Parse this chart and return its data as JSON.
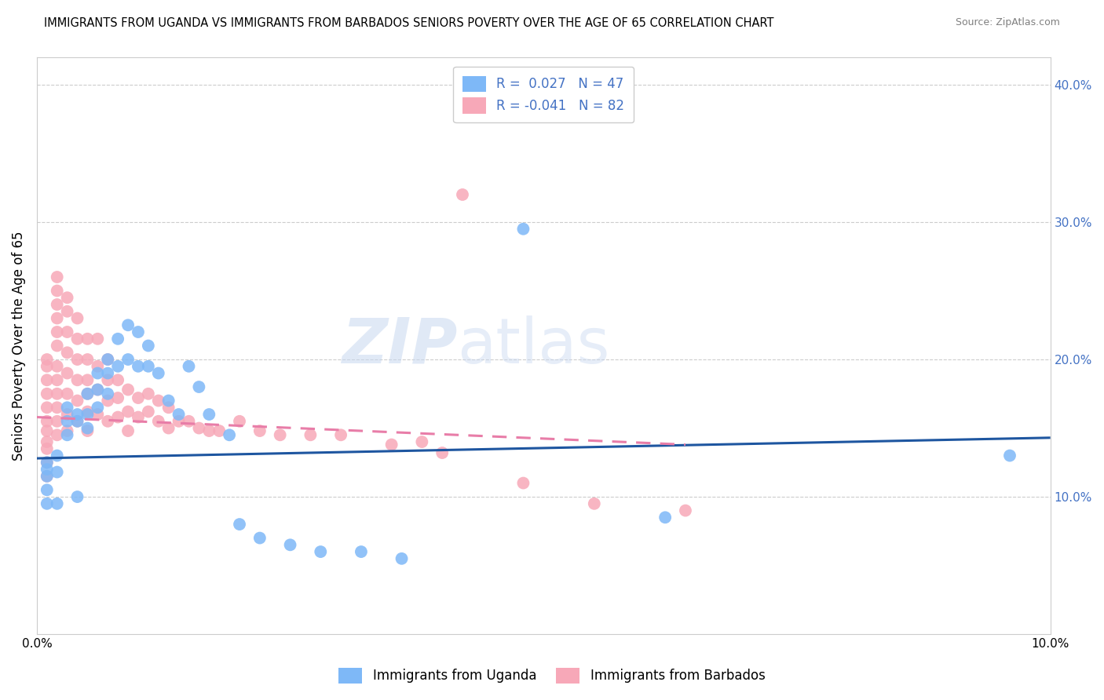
{
  "title": "IMMIGRANTS FROM UGANDA VS IMMIGRANTS FROM BARBADOS SENIORS POVERTY OVER THE AGE OF 65 CORRELATION CHART",
  "source": "Source: ZipAtlas.com",
  "ylabel": "Seniors Poverty Over the Age of 65",
  "xlim": [
    0.0,
    0.1
  ],
  "ylim": [
    0.0,
    0.42
  ],
  "legend_label1": "Immigrants from Uganda",
  "legend_label2": "Immigrants from Barbados",
  "R1": "0.027",
  "N1": "47",
  "R2": "-0.041",
  "N2": "82",
  "color_uganda": "#7EB8F7",
  "color_barbados": "#F7A8B8",
  "color_uganda_line": "#1E56A0",
  "color_barbados_line": "#E87DA8",
  "watermark_zip": "ZIP",
  "watermark_atlas": "atlas",
  "uganda_line_x0": 0.0,
  "uganda_line_y0": 0.128,
  "uganda_line_x1": 0.1,
  "uganda_line_y1": 0.143,
  "barbados_line_x0": 0.0,
  "barbados_line_y0": 0.158,
  "barbados_line_x1": 0.064,
  "barbados_line_y1": 0.138,
  "uganda_x": [
    0.001,
    0.001,
    0.001,
    0.001,
    0.001,
    0.002,
    0.002,
    0.002,
    0.003,
    0.003,
    0.003,
    0.004,
    0.004,
    0.004,
    0.005,
    0.005,
    0.005,
    0.006,
    0.006,
    0.006,
    0.007,
    0.007,
    0.007,
    0.008,
    0.008,
    0.009,
    0.009,
    0.01,
    0.01,
    0.011,
    0.011,
    0.012,
    0.013,
    0.014,
    0.015,
    0.016,
    0.017,
    0.019,
    0.02,
    0.022,
    0.025,
    0.028,
    0.032,
    0.036,
    0.048,
    0.062,
    0.096
  ],
  "uganda_y": [
    0.115,
    0.12,
    0.125,
    0.105,
    0.095,
    0.13,
    0.118,
    0.095,
    0.165,
    0.155,
    0.145,
    0.16,
    0.155,
    0.1,
    0.175,
    0.16,
    0.15,
    0.19,
    0.178,
    0.165,
    0.2,
    0.19,
    0.175,
    0.215,
    0.195,
    0.225,
    0.2,
    0.22,
    0.195,
    0.21,
    0.195,
    0.19,
    0.17,
    0.16,
    0.195,
    0.18,
    0.16,
    0.145,
    0.08,
    0.07,
    0.065,
    0.06,
    0.06,
    0.055,
    0.295,
    0.085,
    0.13
  ],
  "barbados_x": [
    0.001,
    0.001,
    0.001,
    0.001,
    0.001,
    0.001,
    0.001,
    0.001,
    0.001,
    0.001,
    0.001,
    0.002,
    0.002,
    0.002,
    0.002,
    0.002,
    0.002,
    0.002,
    0.002,
    0.002,
    0.002,
    0.002,
    0.002,
    0.003,
    0.003,
    0.003,
    0.003,
    0.003,
    0.003,
    0.003,
    0.003,
    0.004,
    0.004,
    0.004,
    0.004,
    0.004,
    0.004,
    0.005,
    0.005,
    0.005,
    0.005,
    0.005,
    0.005,
    0.006,
    0.006,
    0.006,
    0.006,
    0.007,
    0.007,
    0.007,
    0.007,
    0.008,
    0.008,
    0.008,
    0.009,
    0.009,
    0.009,
    0.01,
    0.01,
    0.011,
    0.011,
    0.012,
    0.012,
    0.013,
    0.013,
    0.014,
    0.015,
    0.016,
    0.017,
    0.018,
    0.02,
    0.022,
    0.024,
    0.027,
    0.03,
    0.035,
    0.038,
    0.04,
    0.042,
    0.048,
    0.055,
    0.064
  ],
  "barbados_y": [
    0.2,
    0.195,
    0.185,
    0.175,
    0.165,
    0.155,
    0.148,
    0.14,
    0.135,
    0.125,
    0.115,
    0.26,
    0.25,
    0.24,
    0.23,
    0.22,
    0.21,
    0.195,
    0.185,
    0.175,
    0.165,
    0.155,
    0.145,
    0.245,
    0.235,
    0.22,
    0.205,
    0.19,
    0.175,
    0.16,
    0.148,
    0.23,
    0.215,
    0.2,
    0.185,
    0.17,
    0.155,
    0.215,
    0.2,
    0.185,
    0.175,
    0.162,
    0.148,
    0.215,
    0.195,
    0.178,
    0.16,
    0.2,
    0.185,
    0.17,
    0.155,
    0.185,
    0.172,
    0.158,
    0.178,
    0.162,
    0.148,
    0.172,
    0.158,
    0.175,
    0.162,
    0.17,
    0.155,
    0.165,
    0.15,
    0.155,
    0.155,
    0.15,
    0.148,
    0.148,
    0.155,
    0.148,
    0.145,
    0.145,
    0.145,
    0.138,
    0.14,
    0.132,
    0.32,
    0.11,
    0.095,
    0.09
  ]
}
